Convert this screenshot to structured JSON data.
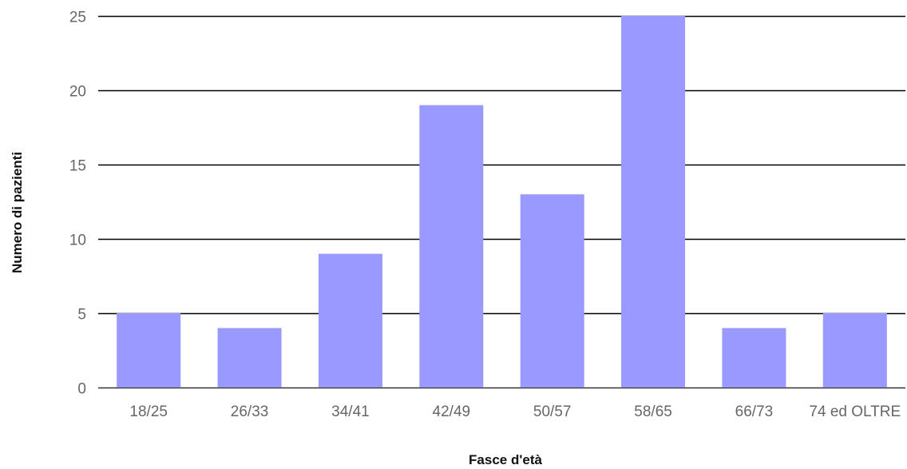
{
  "chart_data": {
    "type": "bar",
    "categories": [
      "18/25",
      "26/33",
      "34/41",
      "42/49",
      "50/57",
      "58/65",
      "66/73",
      "74 ed OLTRE"
    ],
    "values": [
      5,
      4,
      9,
      19,
      13,
      25,
      4,
      5
    ],
    "title": "",
    "xlabel": "Fasce d'età",
    "ylabel": "Numero di pazienti",
    "ylim": [
      0,
      25
    ],
    "yticks": [
      0,
      5,
      10,
      15,
      20,
      25
    ],
    "grid": true,
    "legend": "none",
    "colors": {
      "bar": "#9999ff",
      "grid": "#000000",
      "axis": "#333333"
    }
  }
}
